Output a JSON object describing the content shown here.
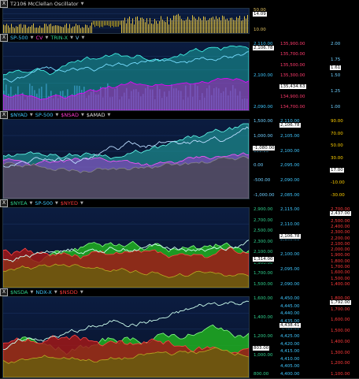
{
  "panels": [
    {
      "id": "p1",
      "header": [
        {
          "t": "T2106 McClellan Oscillator",
          "c": "#dddddd"
        }
      ],
      "scales": [
        {
          "col": "r1",
          "ticks": [
            "50.00",
            "10.00"
          ],
          "color": "#e0c060"
        }
      ],
      "tags": [
        {
          "v": "14.09",
          "scale": "r1"
        }
      ]
    },
    {
      "id": "p2",
      "header": [
        {
          "t": "SP-500",
          "c": "#3fc7ff"
        },
        {
          "t": "CV",
          "c": "#ff3ad0"
        },
        {
          "t": "TRIN-X",
          "c": "#2fd08d"
        },
        {
          "t": "V",
          "c": "#7dd0ff"
        }
      ],
      "scales": [
        {
          "col": "r1",
          "ticks": [
            "2,110.00",
            "2,100.00",
            "2,090.00"
          ],
          "color": "#3fc7ff"
        },
        {
          "col": "r2",
          "ticks": [
            "135,900.00",
            "135,700.00",
            "135,500.00",
            "135,300.00",
            "135,100.00",
            "134,900.00",
            "134,700.00"
          ],
          "color": "#ff3a6d"
        },
        {
          "col": "r3",
          "ticks": [
            "2.00",
            "1.75",
            "1.50",
            "1.25",
            "1.00"
          ],
          "color": "#6ecfff"
        }
      ],
      "tags": [
        {
          "v": "2,106.78",
          "scale": "r1"
        },
        {
          "v": "1.61",
          "scale": "r3"
        },
        {
          "v": "135,434.63",
          "scale": "r2"
        }
      ]
    },
    {
      "id": "p3",
      "header": [
        {
          "t": "$NYAD",
          "c": "#3fc7ff"
        },
        {
          "t": "SP-500",
          "c": "#3fc7ff"
        },
        {
          "t": "$NSAD",
          "c": "#ff3ad0"
        },
        {
          "t": "$AMAD",
          "c": "#dddddd"
        }
      ],
      "scales": [
        {
          "col": "r1",
          "ticks": [
            "1,500.00",
            "1,000.00",
            "500.00",
            "0.00",
            "-500.00",
            "-1,000.00"
          ],
          "color": "#6ecfff"
        },
        {
          "col": "r2",
          "ticks": [
            "2,110.00",
            "2,105.00",
            "2,100.00",
            "2,095.00",
            "2,090.00",
            "2,085.00"
          ],
          "color": "#3fc7ff"
        },
        {
          "col": "r3",
          "ticks": [
            "90.00",
            "70.00",
            "50.00",
            "30.00",
            "10.00",
            "-10.00",
            "-30.00"
          ],
          "color": "#ffd000"
        }
      ],
      "tags": [
        {
          "v": "2,106.78",
          "scale": "r2"
        },
        {
          "v": "-1,080.00",
          "scale": "r1"
        },
        {
          "v": "17.00",
          "scale": "r3"
        }
      ]
    },
    {
      "id": "p4",
      "header": [
        {
          "t": "$NYEA",
          "c": "#2fd08d"
        },
        {
          "t": "SP-500",
          "c": "#3fc7ff"
        },
        {
          "t": "$NYED",
          "c": "#ff3a3a"
        }
      ],
      "scales": [
        {
          "col": "r1",
          "ticks": [
            "2,900.00",
            "2,700.00",
            "2,500.00",
            "2,300.00",
            "2,100.00",
            "1,900.00",
            "1,700.00",
            "1,500.00"
          ],
          "color": "#2fd08d"
        },
        {
          "col": "r2",
          "ticks": [
            "2,115.00",
            "2,110.00",
            "2,105.00",
            "2,100.00",
            "2,095.00",
            "2,090.00"
          ],
          "color": "#3fc7ff"
        },
        {
          "col": "r3",
          "ticks": [
            "2,700.00",
            "2,600.00",
            "2,500.00",
            "2,400.00",
            "2,300.00",
            "2,200.00",
            "2,100.00",
            "2,000.00",
            "1,900.00",
            "1,800.00",
            "1,700.00",
            "1,600.00",
            "1,500.00",
            "1,400.00"
          ],
          "color": "#ff3a3a"
        }
      ],
      "tags": [
        {
          "v": "2,437.00",
          "scale": "r3"
        },
        {
          "v": "2,106.78",
          "scale": "r2"
        },
        {
          "v": "1,314.00",
          "scale": "r1"
        }
      ]
    },
    {
      "id": "p5",
      "header": [
        {
          "t": "$NSDA",
          "c": "#2fd08d"
        },
        {
          "t": "NDX-X",
          "c": "#3fc7ff"
        },
        {
          "t": "$NSDD",
          "c": "#ff3a3a"
        }
      ],
      "scales": [
        {
          "col": "r1",
          "ticks": [
            "1,600.00",
            "1,400.00",
            "1,200.00",
            "1,000.00",
            "800.00"
          ],
          "color": "#2fd08d"
        },
        {
          "col": "r2",
          "ticks": [
            "4,450.00",
            "4,445.00",
            "4,440.00",
            "4,435.00",
            "4,430.00",
            "4,425.00",
            "4,420.00",
            "4,415.00",
            "4,410.00",
            "4,405.00",
            "4,400.00"
          ],
          "color": "#3fc7ff"
        },
        {
          "col": "r3",
          "ticks": [
            "1,800.00",
            "1,700.00",
            "1,600.00",
            "1,500.00",
            "1,400.00",
            "1,300.00",
            "1,200.00",
            "1,100.00"
          ],
          "color": "#ff3a3a"
        }
      ],
      "tags": [
        {
          "v": "1,792.00",
          "scale": "r3"
        },
        {
          "v": "4,438.41",
          "scale": "r2"
        },
        {
          "v": "803.00",
          "scale": "r1"
        }
      ]
    }
  ]
}
